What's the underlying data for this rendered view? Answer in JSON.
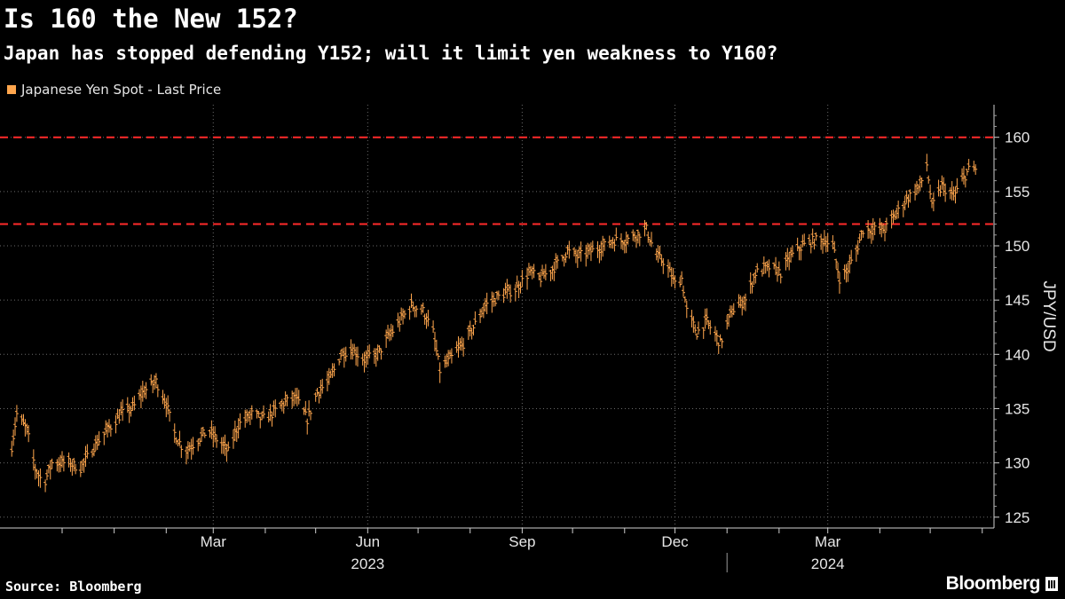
{
  "title": "Is 160 the New 152?",
  "subtitle": "Japan has stopped defending Y152; will it limit yen weakness to Y160?",
  "source": "Source: Bloomberg",
  "brand": "Bloomberg",
  "chart_data": {
    "type": "bar",
    "style": "ohlc",
    "series": [
      {
        "name": "Japanese Yen Spot - Last Price",
        "color": "#ffa64d",
        "anchors": [
          [
            "2022-11-01",
            131.5
          ],
          [
            "2022-11-04",
            134.5
          ],
          [
            "2022-11-10",
            133.0
          ],
          [
            "2022-11-15",
            129.5
          ],
          [
            "2022-11-20",
            128.0
          ],
          [
            "2022-11-25",
            130.0
          ],
          [
            "2022-12-05",
            130.0
          ],
          [
            "2022-12-12",
            129.5
          ],
          [
            "2022-12-20",
            131.5
          ],
          [
            "2022-12-28",
            133.0
          ],
          [
            "2023-01-05",
            134.5
          ],
          [
            "2023-01-12",
            135.0
          ],
          [
            "2023-01-18",
            136.5
          ],
          [
            "2023-01-26",
            137.5
          ],
          [
            "2023-02-01",
            135.5
          ],
          [
            "2023-02-05",
            133.0
          ],
          [
            "2023-02-12",
            131.0
          ],
          [
            "2023-02-19",
            132.0
          ],
          [
            "2023-02-26",
            133.0
          ],
          [
            "2023-03-04",
            132.0
          ],
          [
            "2023-03-10",
            131.0
          ],
          [
            "2023-03-16",
            133.5
          ],
          [
            "2023-03-24",
            134.5
          ],
          [
            "2023-03-30",
            134.0
          ],
          [
            "2023-04-05",
            134.5
          ],
          [
            "2023-04-12",
            135.5
          ],
          [
            "2023-04-19",
            136.0
          ],
          [
            "2023-04-26",
            134.0
          ],
          [
            "2023-05-02",
            136.5
          ],
          [
            "2023-05-09",
            137.5
          ],
          [
            "2023-05-16",
            140.0
          ],
          [
            "2023-05-22",
            140.5
          ],
          [
            "2023-05-30",
            139.5
          ],
          [
            "2023-06-07",
            140.0
          ],
          [
            "2023-06-13",
            141.5
          ],
          [
            "2023-06-20",
            143.0
          ],
          [
            "2023-06-27",
            144.5
          ],
          [
            "2023-07-04",
            144.0
          ],
          [
            "2023-07-10",
            142.0
          ],
          [
            "2023-07-14",
            138.5
          ],
          [
            "2023-07-20",
            139.5
          ],
          [
            "2023-07-28",
            141.0
          ],
          [
            "2023-08-03",
            142.5
          ],
          [
            "2023-08-10",
            144.5
          ],
          [
            "2023-08-20",
            145.5
          ],
          [
            "2023-08-28",
            146.0
          ],
          [
            "2023-09-05",
            147.5
          ],
          [
            "2023-09-12",
            147.0
          ],
          [
            "2023-09-20",
            148.0
          ],
          [
            "2023-09-28",
            149.5
          ],
          [
            "2023-10-04",
            149.0
          ],
          [
            "2023-10-12",
            149.5
          ],
          [
            "2023-10-20",
            150.0
          ],
          [
            "2023-10-26",
            150.5
          ],
          [
            "2023-11-01",
            150.5
          ],
          [
            "2023-11-08",
            151.0
          ],
          [
            "2023-11-14",
            151.5
          ],
          [
            "2023-11-20",
            149.0
          ],
          [
            "2023-11-25",
            148.5
          ],
          [
            "2023-12-01",
            146.5
          ],
          [
            "2023-12-05",
            147.0
          ],
          [
            "2023-12-08",
            144.0
          ],
          [
            "2023-12-14",
            142.0
          ],
          [
            "2023-12-20",
            143.0
          ],
          [
            "2023-12-28",
            141.0
          ],
          [
            "2024-01-04",
            144.0
          ],
          [
            "2024-01-12",
            145.0
          ],
          [
            "2024-01-18",
            147.5
          ],
          [
            "2024-01-26",
            148.0
          ],
          [
            "2024-02-02",
            147.5
          ],
          [
            "2024-02-08",
            149.0
          ],
          [
            "2024-02-15",
            150.0
          ],
          [
            "2024-02-22",
            150.5
          ],
          [
            "2024-02-28",
            150.5
          ],
          [
            "2024-03-04",
            150.0
          ],
          [
            "2024-03-08",
            147.0
          ],
          [
            "2024-03-12",
            147.5
          ],
          [
            "2024-03-18",
            149.5
          ],
          [
            "2024-03-22",
            151.5
          ],
          [
            "2024-03-28",
            151.5
          ],
          [
            "2024-04-04",
            151.5
          ],
          [
            "2024-04-11",
            153.0
          ],
          [
            "2024-04-18",
            154.5
          ],
          [
            "2024-04-25",
            155.5
          ],
          [
            "2024-04-29",
            157.5
          ],
          [
            "2024-05-02",
            153.5
          ],
          [
            "2024-05-08",
            155.5
          ],
          [
            "2024-05-15",
            154.5
          ],
          [
            "2024-05-20",
            156.0
          ],
          [
            "2024-05-24",
            157.0
          ],
          [
            "2024-05-28",
            157.0
          ]
        ]
      }
    ],
    "reference_lines": [
      152,
      160
    ],
    "ylim": [
      124,
      163
    ],
    "yticks": [
      125,
      130,
      135,
      140,
      145,
      150,
      155,
      160
    ],
    "ylabel": "JPY/USD",
    "xlim": [
      "2022-10-25",
      "2024-06-08"
    ],
    "month_ticks": [
      {
        "date": "2023-03-01",
        "label": "Mar"
      },
      {
        "date": "2023-06-01",
        "label": "Jun"
      },
      {
        "date": "2023-09-01",
        "label": "Sep"
      },
      {
        "date": "2023-12-01",
        "label": "Dec"
      },
      {
        "date": "2024-03-01",
        "label": "Mar"
      }
    ],
    "year_labels": [
      {
        "date": "2023-06-01",
        "label": "2023"
      },
      {
        "date": "2024-03-01",
        "label": "2024"
      }
    ],
    "year_separator": "2024-01-01",
    "grid": true,
    "legend_position": "top-left"
  }
}
